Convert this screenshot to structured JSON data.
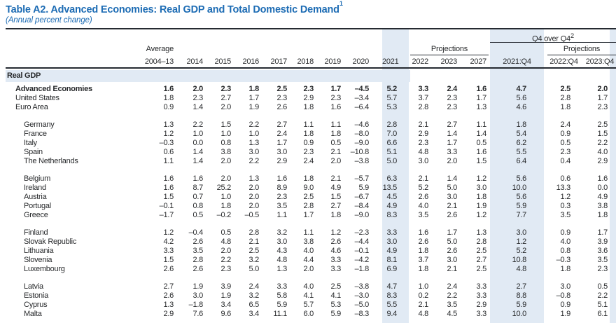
{
  "title": {
    "text": "Table A2. Advanced Economies: Real GDP and Total Domestic Demand",
    "footnote_mark": "1"
  },
  "subtitle": "(Annual percent change)",
  "colors": {
    "accent_blue": "#1d6cb4",
    "band_blue": "#e1eaf4",
    "text": "#27292b",
    "rule": "#252a31"
  },
  "header": {
    "q4_over_q4": {
      "text": "Q4 over Q4",
      "footnote_mark": "2"
    },
    "average_label": "Average",
    "projections_label": "Projections",
    "q4_projections_label": "Projections",
    "year_labels": [
      "2004–13",
      "2014",
      "2015",
      "2016",
      "2017",
      "2018",
      "2019",
      "2020",
      "2021",
      "2022",
      "2023",
      "2027",
      "2021:Q4",
      "2022:Q4",
      "2023:Q4"
    ]
  },
  "section_label": "Real GDP",
  "groups": [
    {
      "rows": [
        {
          "name": "Advanced Economies",
          "bold": true,
          "indent": 1,
          "values": [
            "1.6",
            "2.0",
            "2.3",
            "1.8",
            "2.5",
            "2.3",
            "1.7",
            "–4.5",
            "5.2",
            "3.3",
            "2.4",
            "1.6",
            "4.7",
            "2.5",
            "2.0"
          ]
        },
        {
          "name": "United States",
          "bold": false,
          "indent": 1,
          "values": [
            "1.8",
            "2.3",
            "2.7",
            "1.7",
            "2.3",
            "2.9",
            "2.3",
            "–3.4",
            "5.7",
            "3.7",
            "2.3",
            "1.7",
            "5.6",
            "2.8",
            "1.7"
          ]
        },
        {
          "name": "Euro Area",
          "bold": false,
          "indent": 1,
          "values": [
            "0.9",
            "1.4",
            "2.0",
            "1.9",
            "2.6",
            "1.8",
            "1.6",
            "–6.4",
            "5.3",
            "2.8",
            "2.3",
            "1.3",
            "4.6",
            "1.8",
            "2.3"
          ]
        }
      ]
    },
    {
      "rows": [
        {
          "name": "Germany",
          "bold": false,
          "indent": 2,
          "values": [
            "1.3",
            "2.2",
            "1.5",
            "2.2",
            "2.7",
            "1.1",
            "1.1",
            "–4.6",
            "2.8",
            "2.1",
            "2.7",
            "1.1",
            "1.8",
            "2.4",
            "2.5"
          ]
        },
        {
          "name": "France",
          "bold": false,
          "indent": 2,
          "values": [
            "1.2",
            "1.0",
            "1.0",
            "1.0",
            "2.4",
            "1.8",
            "1.8",
            "–8.0",
            "7.0",
            "2.9",
            "1.4",
            "1.4",
            "5.4",
            "0.9",
            "1.5"
          ]
        },
        {
          "name": "Italy",
          "bold": false,
          "indent": 2,
          "values": [
            "–0.3",
            "0.0",
            "0.8",
            "1.3",
            "1.7",
            "0.9",
            "0.5",
            "–9.0",
            "6.6",
            "2.3",
            "1.7",
            "0.5",
            "6.2",
            "0.5",
            "2.2"
          ]
        },
        {
          "name": "Spain",
          "bold": false,
          "indent": 2,
          "values": [
            "0.6",
            "1.4",
            "3.8",
            "3.0",
            "3.0",
            "2.3",
            "2.1",
            "–10.8",
            "5.1",
            "4.8",
            "3.3",
            "1.6",
            "5.5",
            "2.3",
            "4.0"
          ]
        },
        {
          "name": "The Netherlands",
          "bold": false,
          "indent": 2,
          "values": [
            "1.1",
            "1.4",
            "2.0",
            "2.2",
            "2.9",
            "2.4",
            "2.0",
            "–3.8",
            "5.0",
            "3.0",
            "2.0",
            "1.5",
            "6.4",
            "0.4",
            "2.9"
          ]
        }
      ]
    },
    {
      "rows": [
        {
          "name": "Belgium",
          "bold": false,
          "indent": 2,
          "values": [
            "1.6",
            "1.6",
            "2.0",
            "1.3",
            "1.6",
            "1.8",
            "2.1",
            "–5.7",
            "6.3",
            "2.1",
            "1.4",
            "1.2",
            "5.6",
            "0.6",
            "1.6"
          ]
        },
        {
          "name": "Ireland",
          "bold": false,
          "indent": 2,
          "values": [
            "1.6",
            "8.7",
            "25.2",
            "2.0",
            "8.9",
            "9.0",
            "4.9",
            "5.9",
            "13.5",
            "5.2",
            "5.0",
            "3.0",
            "10.0",
            "13.3",
            "0.0"
          ]
        },
        {
          "name": "Austria",
          "bold": false,
          "indent": 2,
          "values": [
            "1.5",
            "0.7",
            "1.0",
            "2.0",
            "2.3",
            "2.5",
            "1.5",
            "–6.7",
            "4.5",
            "2.6",
            "3.0",
            "1.8",
            "5.6",
            "1.2",
            "4.9"
          ]
        },
        {
          "name": "Portugal",
          "bold": false,
          "indent": 2,
          "values": [
            "–0.1",
            "0.8",
            "1.8",
            "2.0",
            "3.5",
            "2.8",
            "2.7",
            "–8.4",
            "4.9",
            "4.0",
            "2.1",
            "1.9",
            "5.9",
            "0.3",
            "3.8"
          ]
        },
        {
          "name": "Greece",
          "bold": false,
          "indent": 2,
          "values": [
            "–1.7",
            "0.5",
            "–0.2",
            "–0.5",
            "1.1",
            "1.7",
            "1.8",
            "–9.0",
            "8.3",
            "3.5",
            "2.6",
            "1.2",
            "7.7",
            "3.5",
            "1.8"
          ]
        }
      ]
    },
    {
      "rows": [
        {
          "name": "Finland",
          "bold": false,
          "indent": 2,
          "values": [
            "1.2",
            "–0.4",
            "0.5",
            "2.8",
            "3.2",
            "1.1",
            "1.2",
            "–2.3",
            "3.3",
            "1.6",
            "1.7",
            "1.3",
            "3.0",
            "0.9",
            "1.7"
          ]
        },
        {
          "name": "Slovak Republic",
          "bold": false,
          "indent": 2,
          "values": [
            "4.2",
            "2.6",
            "4.8",
            "2.1",
            "3.0",
            "3.8",
            "2.6",
            "–4.4",
            "3.0",
            "2.6",
            "5.0",
            "2.8",
            "1.2",
            "4.0",
            "3.9"
          ]
        },
        {
          "name": "Lithuania",
          "bold": false,
          "indent": 2,
          "values": [
            "3.3",
            "3.5",
            "2.0",
            "2.5",
            "4.3",
            "4.0",
            "4.6",
            "–0.1",
            "4.9",
            "1.8",
            "2.6",
            "2.5",
            "5.2",
            "0.8",
            "3.6"
          ]
        },
        {
          "name": "Slovenia",
          "bold": false,
          "indent": 2,
          "values": [
            "1.5",
            "2.8",
            "2.2",
            "3.2",
            "4.8",
            "4.4",
            "3.3",
            "–4.2",
            "8.1",
            "3.7",
            "3.0",
            "2.7",
            "10.8",
            "–0.3",
            "3.5"
          ]
        },
        {
          "name": "Luxembourg",
          "bold": false,
          "indent": 2,
          "values": [
            "2.6",
            "2.6",
            "2.3",
            "5.0",
            "1.3",
            "2.0",
            "3.3",
            "–1.8",
            "6.9",
            "1.8",
            "2.1",
            "2.5",
            "4.8",
            "1.8",
            "2.3"
          ]
        }
      ]
    },
    {
      "rows": [
        {
          "name": "Latvia",
          "bold": false,
          "indent": 2,
          "values": [
            "2.7",
            "1.9",
            "3.9",
            "2.4",
            "3.3",
            "4.0",
            "2.5",
            "–3.8",
            "4.7",
            "1.0",
            "2.4",
            "3.3",
            "2.7",
            "3.0",
            "0.5"
          ]
        },
        {
          "name": "Estonia",
          "bold": false,
          "indent": 2,
          "values": [
            "2.6",
            "3.0",
            "1.9",
            "3.2",
            "5.8",
            "4.1",
            "4.1",
            "–3.0",
            "8.3",
            "0.2",
            "2.2",
            "3.3",
            "8.8",
            "–0.8",
            "2.2"
          ]
        },
        {
          "name": "Cyprus",
          "bold": false,
          "indent": 2,
          "values": [
            "1.3",
            "–1.8",
            "3.4",
            "6.5",
            "5.9",
            "5.7",
            "5.3",
            "–5.0",
            "5.5",
            "2.1",
            "3.5",
            "2.9",
            "5.9",
            "0.9",
            "5.1"
          ]
        },
        {
          "name": "Malta",
          "bold": false,
          "indent": 2,
          "values": [
            "2.9",
            "7.6",
            "9.6",
            "3.4",
            "11.1",
            "6.0",
            "5.9",
            "–8.3",
            "9.4",
            "4.8",
            "4.5",
            "3.3",
            "10.0",
            "1.9",
            "6.1"
          ]
        }
      ]
    }
  ]
}
